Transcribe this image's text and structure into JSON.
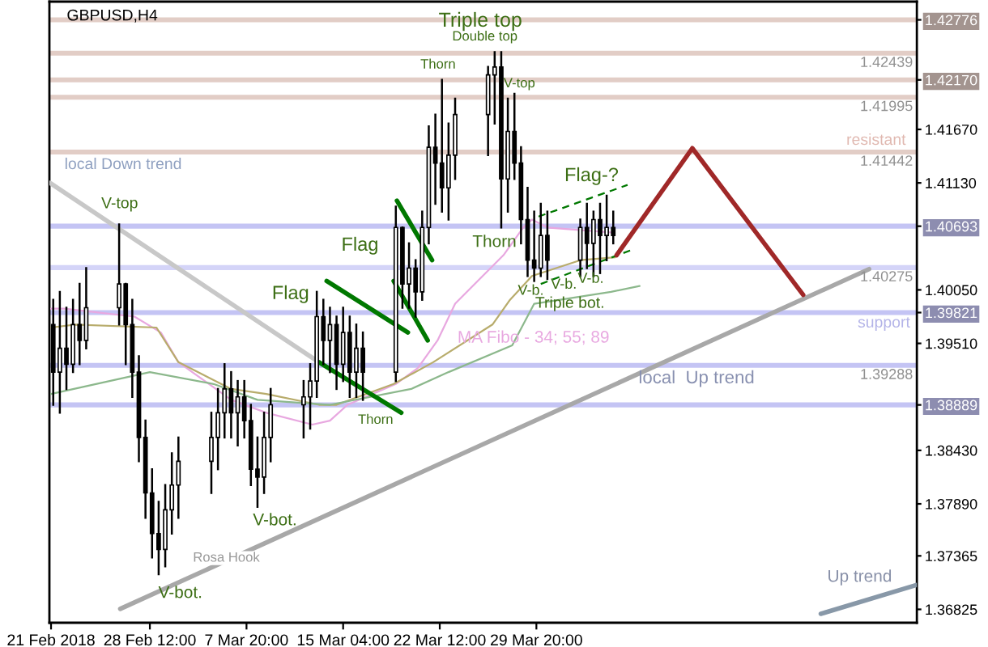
{
  "chart_data": {
    "type": "candlestick",
    "title": "GBPUSD,H4",
    "x": [
      "2018-02-21T04:00",
      "2018-02-21T16:00",
      "2018-02-22T04:00",
      "2018-02-22T16:00",
      "2018-02-23T04:00",
      "2018-02-23T16:00",
      "2018-02-26T04:00",
      "2018-02-26T16:00",
      "2018-02-27T04:00",
      "2018-02-27T16:00",
      "2018-02-28T04:00",
      "2018-02-28T16:00",
      "2018-03-01T04:00",
      "2018-03-01T16:00",
      "2018-03-02T04:00",
      "2018-03-02T16:00",
      "2018-03-05T04:00",
      "2018-03-05T16:00",
      "2018-03-06T04:00",
      "2018-03-06T16:00",
      "2018-03-07T04:00",
      "2018-03-07T16:00",
      "2018-03-08T04:00",
      "2018-03-08T16:00",
      "2018-03-09T04:00",
      "2018-03-09T16:00",
      "2018-03-12T04:00",
      "2018-03-12T16:00",
      "2018-03-13T04:00",
      "2018-03-13T16:00",
      "2018-03-14T04:00",
      "2018-03-14T16:00",
      "2018-03-15T04:00",
      "2018-03-15T16:00",
      "2018-03-16T04:00",
      "2018-03-16T16:00",
      "2018-03-19T04:00",
      "2018-03-19T16:00",
      "2018-03-20T04:00",
      "2018-03-20T16:00",
      "2018-03-21T04:00",
      "2018-03-21T16:00",
      "2018-03-22T04:00",
      "2018-03-22T16:00",
      "2018-03-23T04:00",
      "2018-03-23T16:00",
      "2018-03-26T04:00",
      "2018-03-26T16:00",
      "2018-03-27T04:00",
      "2018-03-27T16:00",
      "2018-03-28T04:00",
      "2018-03-28T16:00",
      "2018-03-29T04:00",
      "2018-03-29T16:00",
      "2018-03-30T04:00",
      "2018-03-30T16:00",
      "2018-04-02T04:00",
      "2018-04-02T16:00",
      "2018-04-03T04:00",
      "2018-04-03T16:00",
      "2018-04-04T04:00",
      "2018-04-04T16:00"
    ],
    "ohlc": [
      [
        1.397,
        1.3995,
        1.3889,
        1.3922
      ],
      [
        1.3922,
        1.4003,
        1.3881,
        1.3946
      ],
      [
        1.3946,
        1.3987,
        1.3905,
        1.393
      ],
      [
        1.393,
        1.3995,
        1.3922,
        1.397
      ],
      [
        1.397,
        1.4011,
        1.393,
        1.3954
      ],
      [
        1.3954,
        1.4027,
        1.3946,
        1.3987
      ],
      [
        1.3987,
        1.4071,
        1.397,
        1.4011
      ],
      [
        1.4011,
        1.4011,
        1.393,
        1.397
      ],
      [
        1.397,
        1.3995,
        1.3897,
        1.3922
      ],
      [
        1.3922,
        1.3938,
        1.3832,
        1.3856
      ],
      [
        1.3856,
        1.3873,
        1.3775,
        1.38
      ],
      [
        1.38,
        1.3824,
        1.3735,
        1.3759
      ],
      [
        1.3759,
        1.3791,
        1.3718,
        1.3743
      ],
      [
        1.3743,
        1.3808,
        1.3726,
        1.3783
      ],
      [
        1.3783,
        1.384,
        1.3759,
        1.3808
      ],
      [
        1.3808,
        1.3856,
        1.3775,
        1.3832
      ],
      [
        1.3832,
        1.3881,
        1.38,
        1.3856
      ],
      [
        1.3856,
        1.3905,
        1.3824,
        1.3881
      ],
      [
        1.3881,
        1.393,
        1.3856,
        1.3905
      ],
      [
        1.3905,
        1.3922,
        1.3856,
        1.3881
      ],
      [
        1.3881,
        1.3913,
        1.3848,
        1.3897
      ],
      [
        1.3897,
        1.3913,
        1.3856,
        1.3873
      ],
      [
        1.3873,
        1.3889,
        1.3808,
        1.3824
      ],
      [
        1.3824,
        1.3856,
        1.3786,
        1.3816
      ],
      [
        1.3816,
        1.3881,
        1.38,
        1.3856
      ],
      [
        1.3856,
        1.3905,
        1.3832,
        1.3889
      ],
      [
        1.3889,
        1.3913,
        1.3856,
        1.3897
      ],
      [
        1.3897,
        1.393,
        1.3865,
        1.3913
      ],
      [
        1.3913,
        1.4003,
        1.3897,
        1.3978
      ],
      [
        1.3978,
        1.3995,
        1.393,
        1.3954
      ],
      [
        1.3954,
        1.3987,
        1.3922,
        1.397
      ],
      [
        1.397,
        1.3978,
        1.3905,
        1.393
      ],
      [
        1.393,
        1.3987,
        1.3913,
        1.3962
      ],
      [
        1.3962,
        1.3978,
        1.3897,
        1.3922
      ],
      [
        1.3922,
        1.397,
        1.3897,
        1.3946
      ],
      [
        1.3946,
        1.3962,
        1.3894,
        1.3922
      ],
      [
        1.3922,
        1.4089,
        1.3913,
        1.4068
      ],
      [
        1.4068,
        1.4068,
        1.3987,
        1.4011
      ],
      [
        1.4011,
        1.4052,
        1.3987,
        1.4027
      ],
      [
        1.4027,
        1.4035,
        1.3978,
        1.4003
      ],
      [
        1.4003,
        1.4084,
        1.3995,
        1.4068
      ],
      [
        1.4068,
        1.417,
        1.4052,
        1.4149
      ],
      [
        1.4149,
        1.4182,
        1.4092,
        1.4133
      ],
      [
        1.4133,
        1.4217,
        1.4084,
        1.4108
      ],
      [
        1.4108,
        1.4173,
        1.4076,
        1.4141
      ],
      [
        1.4141,
        1.4198,
        1.4117,
        1.4182
      ],
      [
        1.4182,
        1.423,
        1.4141,
        1.4222
      ],
      [
        1.4222,
        1.4245,
        1.4173,
        1.423
      ],
      [
        1.423,
        1.4245,
        1.4068,
        1.4117
      ],
      [
        1.4117,
        1.4198,
        1.4084,
        1.4165
      ],
      [
        1.4165,
        1.4203,
        1.4117,
        1.4133
      ],
      [
        1.4133,
        1.4149,
        1.4052,
        1.4076
      ],
      [
        1.4076,
        1.4108,
        1.4019,
        1.4035
      ],
      [
        1.4035,
        1.4084,
        1.4014,
        1.4027
      ],
      [
        1.4027,
        1.4092,
        1.4019,
        1.406
      ],
      [
        1.406,
        1.4084,
        1.4016,
        1.4035
      ],
      [
        1.4035,
        1.4076,
        1.4019,
        1.4068
      ],
      [
        1.4068,
        1.4092,
        1.4027,
        1.4052
      ],
      [
        1.4052,
        1.4084,
        1.4019,
        1.4076
      ],
      [
        1.4076,
        1.4092,
        1.4022,
        1.406
      ],
      [
        1.406,
        1.41,
        1.4035,
        1.4068
      ],
      [
        1.4068,
        1.4084,
        1.4052,
        1.406
      ]
    ],
    "series": [
      {
        "type": "line",
        "color": "#e8a8e0",
        "x": [
          "2018-02-21T00:00",
          "2018-02-22T00:00",
          "2018-02-27T08:00",
          "2018-03-01T08:00",
          "2018-03-02T16:00",
          "2018-03-06T16:00",
          "2018-03-09T08:00",
          "2018-03-12T20:00",
          "2018-03-14T04:00",
          "2018-03-15T12:00",
          "2018-03-19T04:00",
          "2018-03-20T20:00",
          "2018-03-22T08:00",
          "2018-03-23T16:00",
          "2018-03-27T08:00",
          "2018-03-28T20:00",
          "2018-03-29T12:00",
          "2018-03-30T16:00",
          "2018-04-04T12:00"
        ],
        "values": [
          1.3986,
          1.3986,
          1.3978,
          1.3962,
          1.3932,
          1.3894,
          1.3881,
          1.3869,
          1.3873,
          1.3889,
          1.391,
          1.3926,
          1.3954,
          1.3991,
          1.404,
          1.4068,
          1.4076,
          1.4068,
          1.4063
        ]
      },
      {
        "type": "line",
        "color": "#b8ac6c",
        "x": [
          "2018-02-21T00:00",
          "2018-02-22T20:00",
          "2018-03-01T00:00",
          "2018-03-02T16:00",
          "2018-03-06T16:00",
          "2018-03-09T08:00",
          "2018-03-13T08:00",
          "2018-03-14T16:00",
          "2018-03-19T00:00",
          "2018-03-22T00:00",
          "2018-03-26T12:00",
          "2018-03-27T20:00",
          "2018-03-29T12:00",
          "2018-04-02T04:00",
          "2018-04-04T20:00"
        ],
        "values": [
          1.3967,
          1.397,
          1.3967,
          1.3932,
          1.3905,
          1.39,
          1.3889,
          1.3889,
          1.391,
          1.3932,
          1.397,
          1.3995,
          1.4019,
          1.4035,
          1.4038
        ]
      },
      {
        "type": "line",
        "color": "#8cb88c",
        "x": [
          "2018-02-21T00:00",
          "2018-02-28T12:00",
          "2018-03-05T08:00",
          "2018-03-08T16:00",
          "2018-03-14T04:00",
          "2018-03-20T08:00",
          "2018-03-23T04:00",
          "2018-03-28T00:00",
          "2018-03-29T16:00",
          "2018-04-04T12:00",
          "2018-04-06T16:00"
        ],
        "values": [
          1.39,
          1.3922,
          1.391,
          1.3894,
          1.3889,
          1.3905,
          1.3922,
          1.3949,
          1.3991,
          1.4003,
          1.4009
        ]
      },
      {
        "type": "line",
        "color": "#c8c8c8",
        "x": [
          "2018-02-20T22:00",
          "2018-03-13T08:00"
        ],
        "values": [
          1.4113,
          1.3932
        ]
      },
      {
        "type": "line",
        "color": "#a8a8a8",
        "x": [
          "2018-02-26T06:00",
          "2018-04-24T02:00"
        ],
        "values": [
          1.3683,
          1.4026
        ]
      },
      {
        "type": "line",
        "color": "#8898a8",
        "x": [
          "2018-04-20T10:00",
          "2018-04-27T16:00"
        ],
        "values": [
          1.3678,
          1.3707
        ]
      },
      {
        "type": "line",
        "color": "#007800",
        "x": [
          "2018-03-13T08:00",
          "2018-03-19T14:00"
        ],
        "values": [
          1.3932,
          1.3881
        ]
      },
      {
        "type": "line",
        "color": "#007800",
        "x": [
          "2018-03-13T22:00",
          "2018-03-20T02:00"
        ],
        "values": [
          1.4014,
          1.3962
        ]
      },
      {
        "type": "line",
        "color": "#007800",
        "x": [
          "2018-03-19T00:00",
          "2018-03-21T14:00"
        ],
        "values": [
          1.4014,
          1.3954
        ]
      },
      {
        "type": "line",
        "color": "#007800",
        "x": [
          "2018-03-19T06:00",
          "2018-03-21T22:00"
        ],
        "values": [
          1.4095,
          1.4035
        ]
      },
      {
        "type": "line",
        "color": "#007800",
        "line_style": "dashed",
        "x": [
          "2018-03-30T00:00",
          "2018-04-05T18:00"
        ],
        "values": [
          1.4079,
          1.4111
        ]
      },
      {
        "type": "line",
        "color": "#007800",
        "line_style": "dashed",
        "x": [
          "2018-03-30T04:00",
          "2018-04-06T00:00"
        ],
        "values": [
          1.4011,
          1.4045
        ]
      },
      {
        "type": "line",
        "color": "#a02828",
        "x": [
          "2018-04-04T22:00",
          "2018-04-10T16:00",
          "2018-04-19T02:00"
        ],
        "values": [
          1.404,
          1.4148,
          1.4
        ]
      }
    ],
    "ref_lines": [
      {
        "axis": "y",
        "value": 1.42776,
        "color": "#e2cdc6"
      },
      {
        "axis": "y",
        "value": 1.42439,
        "label": "1.42439",
        "color": "#e2cdc6"
      },
      {
        "axis": "y",
        "value": 1.4217,
        "color": "#e2cdc6"
      },
      {
        "axis": "y",
        "value": 1.41995,
        "label": "1.41995",
        "color": "#e2cdc6"
      },
      {
        "axis": "y",
        "value": 1.41442,
        "label": "1.41442",
        "color": "#e2cdc6"
      },
      {
        "axis": "y",
        "value": 1.40693,
        "color": "#c4c4f4"
      },
      {
        "axis": "y",
        "value": 1.40275,
        "label": "1.40275",
        "color": "#d4d4f8"
      },
      {
        "axis": "y",
        "value": 1.39821,
        "color": "#c4c4f4"
      },
      {
        "axis": "y",
        "value": 1.39288,
        "label": "1.39288",
        "color": "#c4c4f4"
      },
      {
        "axis": "y",
        "value": 1.38889,
        "color": "#c4c4f4"
      }
    ],
    "annotations": [
      "local Down trend",
      "V-top",
      "V-bot.",
      "V-bot.",
      "Rosa Hook",
      "Flag",
      "Flag",
      "Thorn",
      "Thorn",
      {
        "text": "Triple top",
        "x": "2018-03-25T14:00",
        "y": 1.4276
      },
      "Double top",
      {
        "text": "V-top",
        "x": "2018-03-28T13:00",
        "y": 1.4213
      },
      "Thorn",
      "Flag-?",
      "V-b.",
      "V-b.",
      {
        "text": "V-b.",
        "x": "2018-04-02T23:00",
        "y": 1.4016
      },
      {
        "text": "Triple bot.",
        "x": "2018-04-01T09:00",
        "y": 1.3991
      },
      "MA Fibo - 34; 55; 89",
      "local  Up trend",
      "Up trend",
      "resistant",
      "support"
    ],
    "xlim": [
      "2018-02-20T21:00",
      "2018-04-27T17:00"
    ],
    "ylim": [
      1.3669,
      1.4296
    ],
    "xticks": [
      {
        "value": "2018-02-21T00:00",
        "label": "21 Feb 2018"
      },
      {
        "value": "2018-02-28T12:00",
        "label": "28 Feb 12:00"
      },
      {
        "value": "2018-03-07T20:00",
        "label": "7 Mar 20:00"
      },
      {
        "value": "2018-03-15T04:00",
        "label": "15 Mar 04:00"
      },
      {
        "value": "2018-03-22T12:00",
        "label": "22 Mar 12:00"
      },
      {
        "value": "2018-03-29T20:00",
        "label": "29 Mar 20:00"
      }
    ],
    "yticks": [
      {
        "value": 1.42776,
        "label": "1.42776"
      },
      {
        "value": 1.4217,
        "label": "1.42170"
      },
      {
        "value": 1.4167,
        "label": "1.41670"
      },
      {
        "value": 1.4113,
        "label": "1.41130"
      },
      {
        "value": 1.40693,
        "label": "1.40693"
      },
      {
        "value": 1.4005,
        "label": "1.40050"
      },
      {
        "value": 1.39821,
        "label": "1.39821"
      },
      {
        "value": 1.3951,
        "label": "1.39510"
      },
      {
        "value": 1.38889,
        "label": "1.38889"
      },
      {
        "value": 1.3843,
        "label": "1.38430"
      },
      {
        "value": 1.3789,
        "label": "1.37890"
      },
      {
        "value": 1.37365,
        "label": "1.37365"
      },
      {
        "value": 1.36825,
        "label": "1.36825"
      }
    ],
    "grid": false,
    "legend": false
  }
}
